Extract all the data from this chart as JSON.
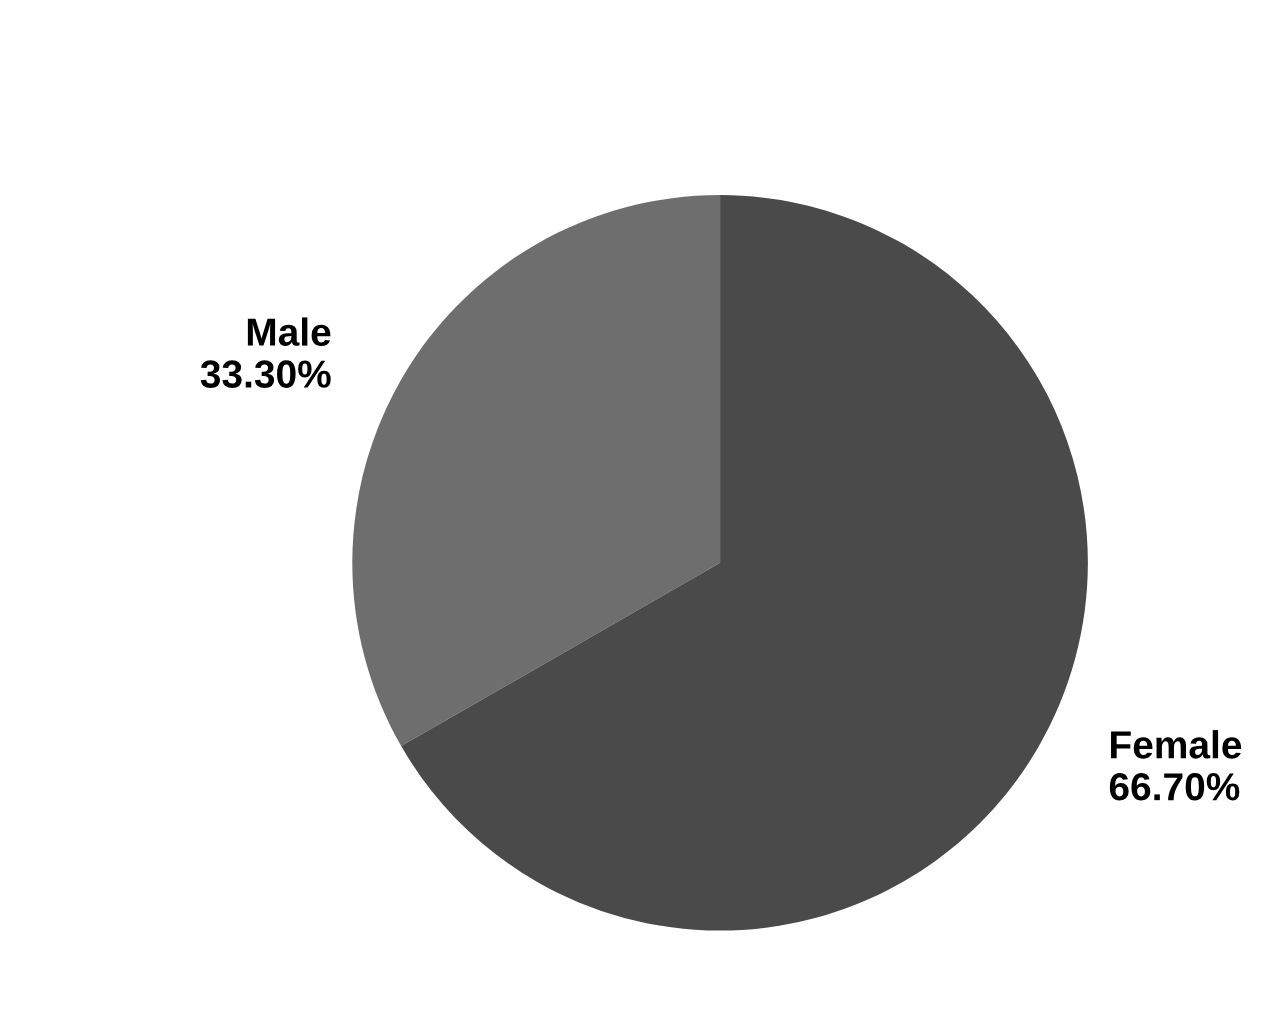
{
  "chart_data": {
    "type": "pie",
    "categories": [
      "Male",
      "Female"
    ],
    "values": [
      33.3,
      66.7
    ],
    "colors": [
      "#6e6e6e",
      "#4a4a4a"
    ],
    "value_labels": [
      "33.30%",
      "66.70%"
    ]
  }
}
